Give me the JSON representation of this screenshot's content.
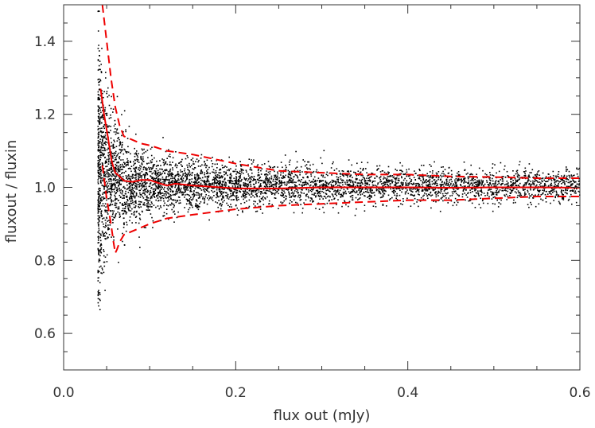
{
  "chart_data": {
    "type": "scatter",
    "title": "",
    "xlabel": "flux out (mJy)",
    "ylabel": "fluxout / fluxin",
    "xlim": [
      0.0,
      0.6
    ],
    "ylim": [
      0.5,
      1.5
    ],
    "x_ticks": [
      0.0,
      0.2,
      0.4,
      0.6
    ],
    "x_tick_labels": [
      "0.0",
      "0.2",
      "0.4",
      "0.6"
    ],
    "y_ticks": [
      0.6,
      0.8,
      1.0,
      1.2,
      1.4
    ],
    "y_tick_labels": [
      "0.6",
      "0.8",
      "1.0",
      "1.2",
      "1.4"
    ],
    "grid": false,
    "scatter_color": "#000000",
    "line_color": "#ee0000",
    "approx_point_count": 5000,
    "median": {
      "x": [
        0.043,
        0.047,
        0.052,
        0.056,
        0.06,
        0.065,
        0.07,
        0.08,
        0.09,
        0.1,
        0.11,
        0.12,
        0.13,
        0.15,
        0.17,
        0.2,
        0.25,
        0.3,
        0.35,
        0.4,
        0.45,
        0.5,
        0.55,
        0.6
      ],
      "y": [
        1.27,
        1.2,
        1.13,
        1.07,
        1.04,
        1.03,
        1.018,
        1.015,
        1.02,
        1.02,
        1.012,
        1.005,
        1.01,
        1.005,
        1.002,
        0.997,
        0.997,
        1.0,
        1.0,
        1.0,
        0.999,
        1.0,
        1.0,
        0.999
      ]
    },
    "upper_envelope": {
      "x": [
        0.045,
        0.05,
        0.055,
        0.06,
        0.065,
        0.07,
        0.08,
        0.09,
        0.1,
        0.12,
        0.15,
        0.2,
        0.25,
        0.3,
        0.35,
        0.4,
        0.45,
        0.5,
        0.55,
        0.6
      ],
      "y": [
        1.5,
        1.4,
        1.3,
        1.22,
        1.17,
        1.14,
        1.13,
        1.12,
        1.115,
        1.1,
        1.09,
        1.065,
        1.045,
        1.04,
        1.035,
        1.035,
        1.03,
        1.028,
        1.025,
        1.025
      ]
    },
    "lower_envelope": {
      "x": [
        0.045,
        0.05,
        0.055,
        0.058,
        0.06,
        0.062,
        0.065,
        0.07,
        0.08,
        0.09,
        0.1,
        0.12,
        0.15,
        0.2,
        0.25,
        0.3,
        0.35,
        0.4,
        0.45,
        0.5,
        0.55,
        0.6
      ],
      "y": [
        1.06,
        0.97,
        0.9,
        0.85,
        0.82,
        0.83,
        0.85,
        0.87,
        0.88,
        0.89,
        0.9,
        0.915,
        0.925,
        0.94,
        0.95,
        0.955,
        0.96,
        0.965,
        0.965,
        0.97,
        0.975,
        0.975
      ]
    }
  }
}
